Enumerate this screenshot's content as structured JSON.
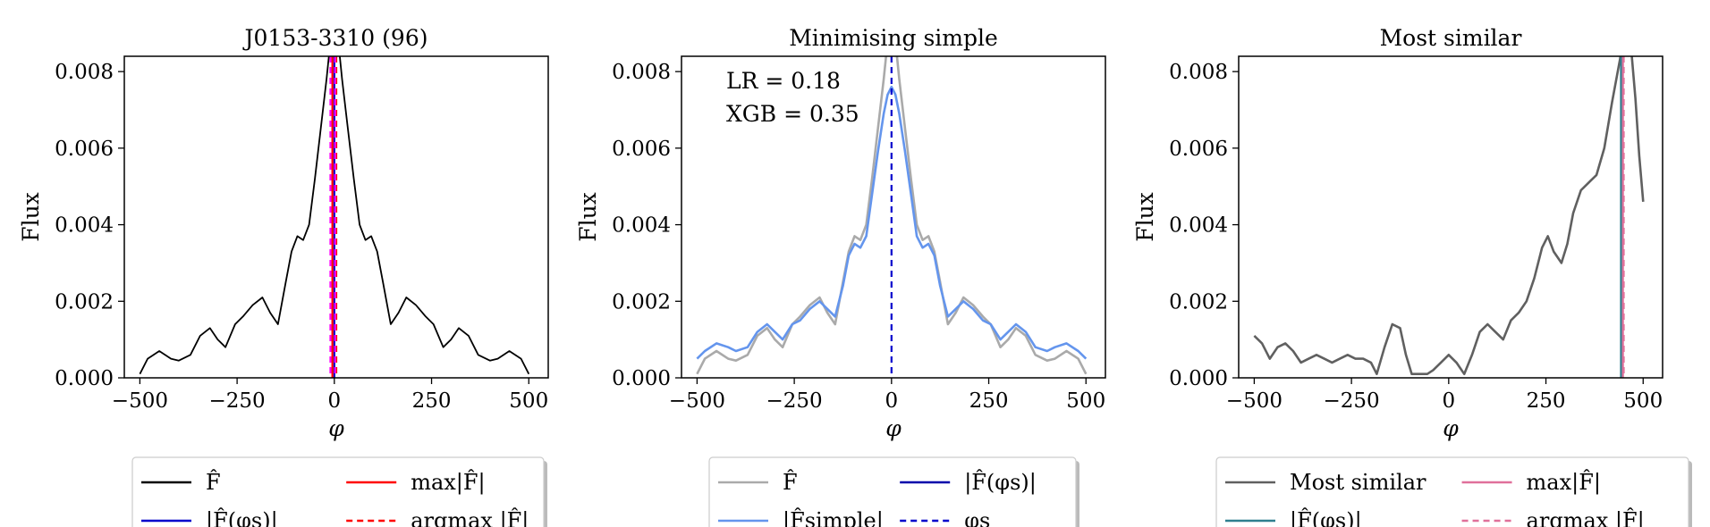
{
  "chart_data": [
    {
      "type": "line",
      "title": "J0153-3310 (96)",
      "xlabel": "φ",
      "ylabel": "Flux",
      "xlim": [
        -540,
        550
      ],
      "ylim": [
        0,
        0.0084
      ],
      "xticks": [
        -500,
        -250,
        0,
        250,
        500
      ],
      "xtick_labels": [
        "−500",
        "−250",
        "0",
        "250",
        "500"
      ],
      "yticks": [
        0,
        0.002,
        0.004,
        0.006,
        0.008
      ],
      "ytick_labels": [
        "0.000",
        "0.002",
        "0.004",
        "0.006",
        "0.008"
      ],
      "grid": false,
      "legend_placement": "below",
      "series": [
        {
          "name": "F̂",
          "color": "#000000",
          "style": "solid",
          "x": [
            -500,
            -480,
            -450,
            -420,
            -400,
            -370,
            -345,
            -320,
            -300,
            -280,
            -255,
            -235,
            -210,
            -185,
            -165,
            -145,
            -125,
            -110,
            -95,
            -80,
            -65,
            -50,
            -35,
            -20,
            -10,
            0,
            10,
            20,
            35,
            50,
            65,
            80,
            95,
            110,
            125,
            145,
            165,
            185,
            210,
            235,
            255,
            280,
            300,
            320,
            345,
            370,
            400,
            420,
            450,
            480,
            500
          ],
          "y": [
            0.0001,
            0.0005,
            0.0007,
            0.0005,
            0.00045,
            0.0006,
            0.0011,
            0.0013,
            0.001,
            0.0008,
            0.0014,
            0.0016,
            0.0019,
            0.0021,
            0.0017,
            0.0014,
            0.0025,
            0.0033,
            0.0037,
            0.0036,
            0.004,
            0.0052,
            0.0065,
            0.0078,
            0.0088,
            0.0092,
            0.0088,
            0.0078,
            0.0065,
            0.0052,
            0.004,
            0.0036,
            0.0037,
            0.0033,
            0.0025,
            0.0014,
            0.0017,
            0.0021,
            0.0019,
            0.0016,
            0.0014,
            0.0008,
            0.001,
            0.0013,
            0.0011,
            0.0006,
            0.00045,
            0.0005,
            0.0007,
            0.0005,
            0.0001
          ]
        }
      ],
      "vlines": [
        {
          "name": "|F̂(φ_s)|",
          "x": 0,
          "color": "#0000cc",
          "style": "solid"
        },
        {
          "name": "max|F̂|",
          "x": -5,
          "color": "#ff0000",
          "style": "solid"
        },
        {
          "name": "argmax |F̂|",
          "x": 5,
          "color": "#ff0000",
          "style": "dashed"
        },
        {
          "x": -10,
          "color": "#ff00ff",
          "style": "dashed"
        },
        {
          "x": 2,
          "color": "#ff00ff",
          "style": "dashed"
        }
      ],
      "legend": [
        {
          "label": "F̂",
          "color": "#000000",
          "style": "solid"
        },
        {
          "label": "max|F̂|",
          "color": "#ff0000",
          "style": "solid"
        },
        {
          "label": "|F̂(φs)|",
          "color": "#0000cc",
          "style": "solid"
        },
        {
          "label": "argmax |F̂|",
          "color": "#ff0000",
          "style": "dashed"
        }
      ]
    },
    {
      "type": "line",
      "title": "Minimising simple",
      "xlabel": "φ",
      "ylabel": "Flux",
      "xlim": [
        -540,
        550
      ],
      "ylim": [
        0,
        0.0084
      ],
      "xticks": [
        -500,
        -250,
        0,
        250,
        500
      ],
      "xtick_labels": [
        "−500",
        "−250",
        "0",
        "250",
        "500"
      ],
      "yticks": [
        0,
        0.002,
        0.004,
        0.006,
        0.008
      ],
      "ytick_labels": [
        "0.000",
        "0.002",
        "0.004",
        "0.006",
        "0.008"
      ],
      "annotations": [
        "LR = 0.18",
        "XGB = 0.35"
      ],
      "grid": false,
      "legend_placement": "below",
      "series": [
        {
          "name": "F̂",
          "color": "#aaaaaa",
          "style": "solid",
          "x": [
            -500,
            -480,
            -450,
            -420,
            -400,
            -370,
            -345,
            -320,
            -300,
            -280,
            -255,
            -235,
            -210,
            -185,
            -165,
            -145,
            -125,
            -110,
            -95,
            -80,
            -65,
            -50,
            -35,
            -20,
            -10,
            0,
            10,
            20,
            35,
            50,
            65,
            80,
            95,
            110,
            125,
            145,
            165,
            185,
            210,
            235,
            255,
            280,
            300,
            320,
            345,
            370,
            400,
            420,
            450,
            480,
            500
          ],
          "y": [
            0.0001,
            0.0005,
            0.0007,
            0.0005,
            0.00045,
            0.0006,
            0.0011,
            0.0013,
            0.001,
            0.0008,
            0.0014,
            0.0016,
            0.0019,
            0.0021,
            0.0017,
            0.0014,
            0.0025,
            0.0033,
            0.0037,
            0.0036,
            0.004,
            0.0052,
            0.0065,
            0.0078,
            0.0088,
            0.0092,
            0.0088,
            0.0078,
            0.0065,
            0.0052,
            0.004,
            0.0036,
            0.0037,
            0.0033,
            0.0025,
            0.0014,
            0.0017,
            0.0021,
            0.0019,
            0.0016,
            0.0014,
            0.0008,
            0.001,
            0.0013,
            0.0011,
            0.0006,
            0.00045,
            0.0005,
            0.0007,
            0.0005,
            0.0001
          ]
        },
        {
          "name": "|F̂simple|",
          "color": "#6495ed",
          "style": "solid",
          "x": [
            -500,
            -480,
            -450,
            -420,
            -400,
            -370,
            -345,
            -320,
            -300,
            -280,
            -255,
            -235,
            -210,
            -185,
            -165,
            -145,
            -125,
            -110,
            -95,
            -80,
            -65,
            -50,
            -35,
            -20,
            -10,
            0,
            10,
            20,
            35,
            50,
            65,
            80,
            95,
            110,
            125,
            145,
            165,
            185,
            210,
            235,
            255,
            280,
            300,
            320,
            345,
            370,
            400,
            420,
            450,
            480,
            500
          ],
          "y": [
            0.0005,
            0.0007,
            0.0009,
            0.0008,
            0.0007,
            0.0008,
            0.0012,
            0.0014,
            0.0012,
            0.001,
            0.0014,
            0.0015,
            0.0018,
            0.002,
            0.0018,
            0.0016,
            0.0024,
            0.0032,
            0.0035,
            0.0034,
            0.0037,
            0.0048,
            0.0059,
            0.0069,
            0.0074,
            0.0076,
            0.0074,
            0.0069,
            0.0059,
            0.0048,
            0.0037,
            0.0034,
            0.0035,
            0.0032,
            0.0024,
            0.0016,
            0.0018,
            0.002,
            0.0018,
            0.0015,
            0.0014,
            0.001,
            0.0012,
            0.0014,
            0.0012,
            0.0008,
            0.0007,
            0.0008,
            0.0009,
            0.0007,
            0.0005
          ]
        }
      ],
      "vlines": [
        {
          "name": "φs",
          "x": 0,
          "color": "#0000cc",
          "style": "dashed"
        }
      ],
      "legend": [
        {
          "label": "F̂",
          "color": "#aaaaaa",
          "style": "solid"
        },
        {
          "label": "|F̂(φs)|",
          "color": "#0000aa",
          "style": "solid"
        },
        {
          "label": "|F̂simple|",
          "color": "#6495ed",
          "style": "solid"
        },
        {
          "label": "φs",
          "color": "#0000cc",
          "style": "dashed"
        }
      ]
    },
    {
      "type": "line",
      "title": "Most similar",
      "xlabel": "φ",
      "ylabel": "Flux",
      "xlim": [
        -540,
        550
      ],
      "ylim": [
        0,
        0.0084
      ],
      "xticks": [
        -500,
        -250,
        0,
        250,
        500
      ],
      "xtick_labels": [
        "−500",
        "−250",
        "0",
        "250",
        "500"
      ],
      "yticks": [
        0,
        0.002,
        0.004,
        0.006,
        0.008
      ],
      "ytick_labels": [
        "0.000",
        "0.002",
        "0.004",
        "0.006",
        "0.008"
      ],
      "grid": false,
      "legend_placement": "below",
      "series": [
        {
          "name": "Most similar",
          "color": "#606060",
          "style": "solid",
          "x": [
            -500,
            -480,
            -460,
            -440,
            -420,
            -400,
            -380,
            -360,
            -340,
            -320,
            -300,
            -280,
            -260,
            -240,
            -220,
            -200,
            -185,
            -165,
            -145,
            -125,
            -110,
            -95,
            -75,
            -55,
            -40,
            -20,
            0,
            20,
            40,
            60,
            80,
            100,
            120,
            140,
            160,
            180,
            200,
            220,
            240,
            255,
            270,
            290,
            305,
            320,
            340,
            360,
            380,
            400,
            420,
            440,
            450,
            460,
            470,
            480,
            490,
            500
          ],
          "y": [
            0.0011,
            0.0009,
            0.0005,
            0.0008,
            0.0009,
            0.0007,
            0.0004,
            0.0005,
            0.0006,
            0.0005,
            0.0004,
            0.0005,
            0.0006,
            0.0005,
            0.0005,
            0.0004,
            0.0001,
            0.0008,
            0.0014,
            0.0013,
            0.0006,
            0.0001,
            0.0001,
            0.0001,
            0.0002,
            0.0004,
            0.0006,
            0.0004,
            0.0001,
            0.0006,
            0.0012,
            0.0014,
            0.0012,
            0.001,
            0.0015,
            0.0017,
            0.002,
            0.0026,
            0.0034,
            0.0037,
            0.0033,
            0.003,
            0.0035,
            0.0043,
            0.0049,
            0.0051,
            0.0053,
            0.006,
            0.0072,
            0.0083,
            0.0089,
            0.009,
            0.0085,
            0.0073,
            0.0058,
            0.0046
          ]
        }
      ],
      "vlines": [
        {
          "name": "|F̂(φs)|",
          "x": 443,
          "color": "#2f7f8f",
          "style": "solid"
        },
        {
          "name": "max|F̂|",
          "x": 448,
          "color": "#e0709a",
          "style": "solid"
        },
        {
          "name": "argmax |F̂|",
          "x": 450,
          "color": "#e0709a",
          "style": "dashed"
        }
      ],
      "legend": [
        {
          "label": "Most similar",
          "color": "#606060",
          "style": "solid"
        },
        {
          "label": "max|F̂|",
          "color": "#e0709a",
          "style": "solid"
        },
        {
          "label": "|F̂(φs)|",
          "color": "#2f7f8f",
          "style": "solid"
        },
        {
          "label": "argmax |F̂|",
          "color": "#e0709a",
          "style": "dashed"
        }
      ]
    }
  ]
}
